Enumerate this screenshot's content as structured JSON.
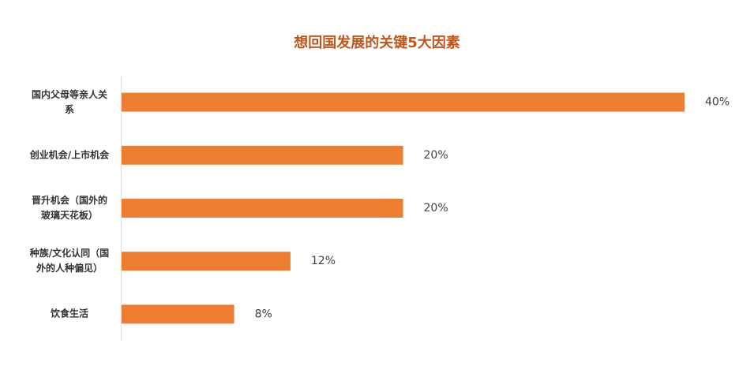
{
  "chart_data": {
    "type": "bar",
    "orientation": "horizontal",
    "title": "想回国发展的关键5大因素",
    "categories": [
      "国内父母等亲人关系",
      "创业机会/上市机会",
      "晋升机会（国外的玻璃天花板）",
      "种族/文化认同（国外的人种偏见）",
      "饮食生活"
    ],
    "values": [
      40,
      20,
      20,
      12,
      8
    ],
    "value_labels": [
      "40%",
      "20%",
      "20%",
      "12%",
      "8%"
    ],
    "color": "#ed7d31"
  }
}
